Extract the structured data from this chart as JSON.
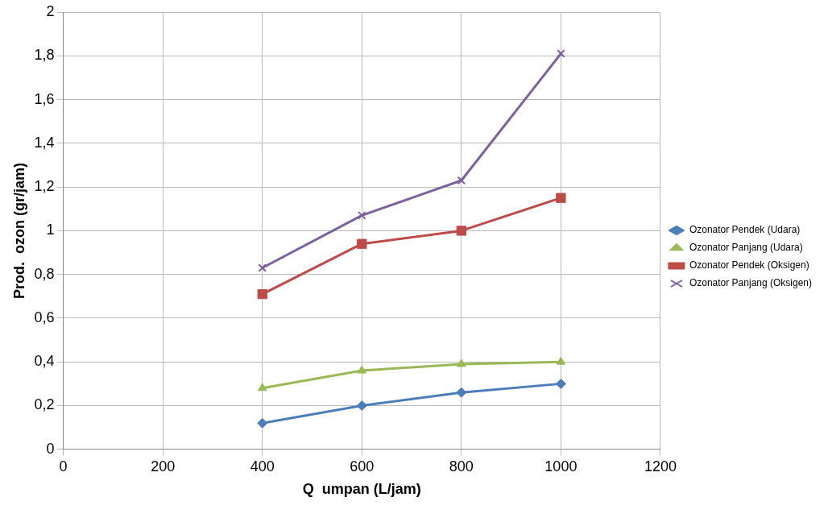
{
  "chart_data": {
    "type": "line",
    "xlabel": "Q  umpan (L/jam)",
    "ylabel": "Prod.  ozon (gr/jam)",
    "x": [
      400,
      600,
      800,
      1000
    ],
    "series": [
      {
        "name": "Ozonator Pendek (Udara)",
        "color": "#4a7ebb",
        "marker": "diamond",
        "values": [
          0.12,
          0.2,
          0.26,
          0.3
        ]
      },
      {
        "name": "Ozonator Panjang (Udara)",
        "color": "#98b954",
        "marker": "triangle",
        "values": [
          0.28,
          0.36,
          0.39,
          0.4
        ]
      },
      {
        "name": "Ozonator Pendek (Oksigen)",
        "color": "#be4b48",
        "marker": "square",
        "values": [
          0.71,
          0.94,
          1.0,
          1.15
        ]
      },
      {
        "name": "Ozonator Panjang (Oksigen)",
        "color": "#7d60a0",
        "marker": "cross",
        "values": [
          0.83,
          1.07,
          1.23,
          1.81
        ]
      }
    ],
    "xlim": [
      0,
      1200
    ],
    "xticks": [
      0,
      200,
      400,
      600,
      800,
      1000,
      1200
    ],
    "ylim": [
      0,
      2
    ],
    "yticks": [
      0,
      {
        "value": 0.2,
        "label": "0,2"
      },
      {
        "value": 0.4,
        "label": "0,4"
      },
      {
        "value": 0.6,
        "label": "0,6"
      },
      {
        "value": 0.8,
        "label": "0,8"
      },
      1,
      {
        "value": 1.2,
        "label": "1,2"
      },
      {
        "value": 1.4,
        "label": "1,4"
      },
      {
        "value": 1.6,
        "label": "1,6"
      },
      {
        "value": 1.8,
        "label": "1,8"
      },
      2
    ],
    "grid": true,
    "legend": "right",
    "line_style": "solid"
  }
}
